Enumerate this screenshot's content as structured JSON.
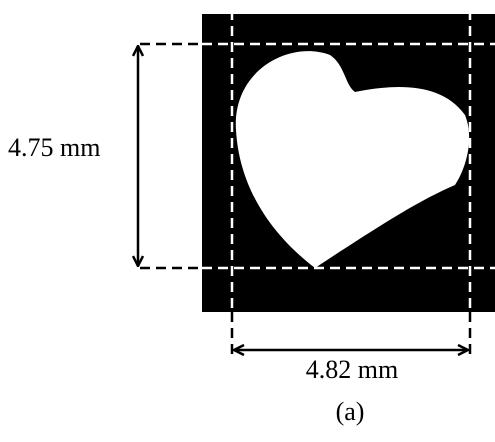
{
  "labels": {
    "height": "4.75 mm",
    "width": "4.82 mm"
  },
  "caption": "(a)"
}
